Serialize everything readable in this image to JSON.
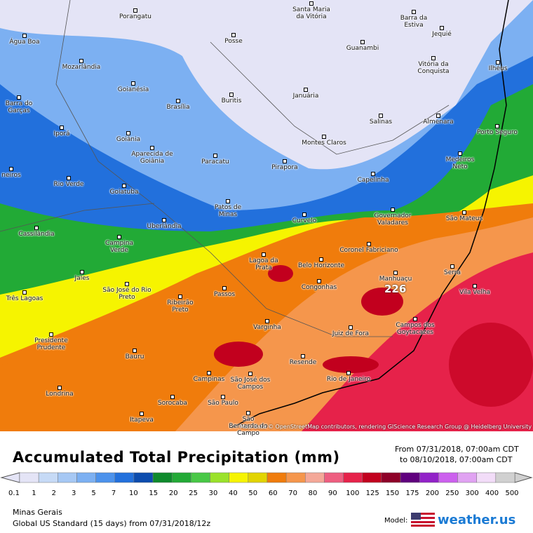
{
  "map": {
    "cities": [
      "Porangatu",
      "Santa Maria da Vitória",
      "Barra da Estiva",
      "Jequié",
      "Água Boa",
      "Posse",
      "Guanambi",
      "Vitória da Conquista",
      "Mozarlândia",
      "Ilhéus",
      "Goianésia",
      "Buritis",
      "Januária",
      "Barra do Garças",
      "Brasília",
      "Salinas",
      "Almenara",
      "Porto Seguro",
      "Iporá",
      "Goiânia",
      "Montes Claros",
      "Aparecida de Goiânia",
      "Paracatu",
      "Pirapora",
      "Medeiros Neto",
      "Capelinha",
      "neiros",
      "Rio Verde",
      "Goiatuba",
      "Patos de Minas",
      "Governador Valadares",
      "São Mateus",
      "Curvelo",
      "Uberlândia",
      "Cassilândia",
      "Campina Verde",
      "Coronel Fabriciano",
      "Lagoa da Prata",
      "Belo Horizonte",
      "Manhuaçu",
      "Serra",
      "Vila Velha",
      "Jales",
      "São José do Rio Preto",
      "Passos",
      "Congonhas",
      "Três Lagoas",
      "Ribeirão Preto",
      "Varginha",
      "Juiz de Fora",
      "Campos dos Goytacazes",
      "Presidente Prudente",
      "Bauru",
      "Resende",
      "Campinas",
      "São José dos Campos",
      "Rio de Janeiro",
      "Londrina",
      "Sorocaba",
      "São Paulo",
      "Itapeva",
      "São Bernardo do Campo"
    ],
    "max_label": "226",
    "attribution": "Map data © OpenStreetMap contributors, rendering GIScience Research Group @ Heidelberg University"
  },
  "legend": {
    "title": "Accumulated Total Precipitation (mm)",
    "from": "From 07/31/2018, 07:00am CDT",
    "to": "to 08/10/2018, 07:00am CDT",
    "levels": [
      0.1,
      1,
      2,
      3,
      5,
      7,
      10,
      15,
      20,
      25,
      30,
      40,
      50,
      60,
      70,
      80,
      90,
      100,
      125,
      150,
      175,
      200,
      250,
      300,
      400,
      500
    ],
    "colors": [
      "#e4e4f6",
      "#c6daf6",
      "#a6c8f4",
      "#7cb0f2",
      "#4c92ec",
      "#2270dc",
      "#0c4cae",
      "#0e8a2c",
      "#22aa36",
      "#48c846",
      "#9ae22a",
      "#f6f400",
      "#e2d400",
      "#f07c0c",
      "#f5964c",
      "#f4a898",
      "#ee5e80",
      "#e6224a",
      "#c2001e",
      "#8e0028",
      "#60007e",
      "#9222c8",
      "#cc60ee",
      "#e0a2f2",
      "#f2dcf8",
      "#d0d0d0"
    ],
    "region": "Minas Gerais",
    "model_run": "Global US Standard (15 days) from 07/31/2018/12z",
    "model_label": "Model:",
    "brand": "weather.us"
  }
}
